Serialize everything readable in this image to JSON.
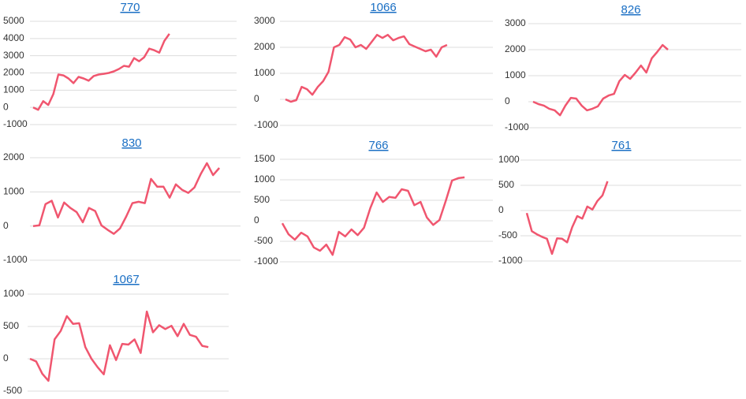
{
  "chart_data": [
    {
      "type": "line",
      "title": "770",
      "color": "#f0566f",
      "grid": true,
      "ylim": [
        -1000,
        5000
      ],
      "yticks": [
        5000,
        4000,
        3000,
        2000,
        1000,
        0,
        -1000
      ],
      "values": [
        0,
        -140,
        360,
        140,
        770,
        1910,
        1860,
        1680,
        1410,
        1770,
        1680,
        1550,
        1820,
        1910,
        1950,
        2000,
        2090,
        2230,
        2410,
        2360,
        2860,
        2680,
        2910,
        3410,
        3320,
        3180,
        3860,
        4270
      ]
    },
    {
      "type": "line",
      "title": "1066",
      "color": "#f0566f",
      "grid": true,
      "ylim": [
        -1000,
        3000
      ],
      "yticks": [
        3000,
        2000,
        1000,
        0,
        -1000
      ],
      "values": [
        0,
        -90,
        -30,
        480,
        390,
        180,
        480,
        700,
        1060,
        2000,
        2090,
        2390,
        2300,
        2000,
        2090,
        1940,
        2210,
        2480,
        2360,
        2480,
        2270,
        2360,
        2420,
        2120,
        2030,
        1940,
        1850,
        1910,
        1640,
        2000,
        2090
      ]
    },
    {
      "type": "line",
      "title": "826",
      "color": "#f0566f",
      "grid": true,
      "ylim": [
        -1000,
        3000
      ],
      "yticks": [
        3000,
        2000,
        1000,
        0,
        -1000
      ],
      "values": [
        0,
        -90,
        -150,
        -270,
        -330,
        -520,
        -150,
        150,
        120,
        -150,
        -330,
        -270,
        -180,
        120,
        240,
        300,
        790,
        1030,
        880,
        1120,
        1390,
        1120,
        1670,
        1910,
        2180,
        2000
      ]
    },
    {
      "type": "line",
      "title": "830",
      "color": "#f0566f",
      "grid": true,
      "ylim": [
        -1000,
        2000
      ],
      "yticks": [
        2000,
        1000,
        0,
        -1000
      ],
      "values": [
        0,
        20,
        640,
        740,
        250,
        690,
        530,
        410,
        110,
        530,
        440,
        20,
        -110,
        -230,
        -70,
        280,
        670,
        710,
        670,
        1380,
        1150,
        1150,
        830,
        1220,
        1060,
        970,
        1130,
        1520,
        1840,
        1490,
        1700
      ]
    },
    {
      "type": "line",
      "title": "766",
      "color": "#f0566f",
      "grid": true,
      "ylim": [
        -1000,
        1500
      ],
      "yticks": [
        1500,
        1000,
        500,
        0,
        -500,
        -1000
      ],
      "values": [
        -60,
        -330,
        -460,
        -290,
        -380,
        -650,
        -730,
        -580,
        -830,
        -270,
        -380,
        -210,
        -350,
        -170,
        310,
        690,
        460,
        580,
        560,
        770,
        730,
        380,
        460,
        80,
        -100,
        20,
        480,
        980,
        1040,
        1060
      ]
    },
    {
      "type": "line",
      "title": "761",
      "color": "#f0566f",
      "grid": true,
      "ylim": [
        -1000,
        1000
      ],
      "yticks": [
        1000,
        500,
        0,
        -500,
        -1000
      ],
      "values": [
        -50,
        -410,
        -470,
        -520,
        -560,
        -860,
        -550,
        -560,
        -630,
        -330,
        -110,
        -160,
        80,
        20,
        190,
        300,
        580
      ]
    },
    {
      "type": "line",
      "title": "1067",
      "color": "#f0566f",
      "grid": true,
      "ylim": [
        -500,
        1000
      ],
      "yticks": [
        1000,
        500,
        0,
        -500
      ],
      "values": [
        0,
        -40,
        -230,
        -340,
        300,
        430,
        660,
        540,
        550,
        180,
        0,
        -130,
        -240,
        210,
        -20,
        230,
        220,
        300,
        90,
        730,
        410,
        520,
        460,
        510,
        350,
        540,
        370,
        340,
        200,
        180
      ]
    }
  ]
}
